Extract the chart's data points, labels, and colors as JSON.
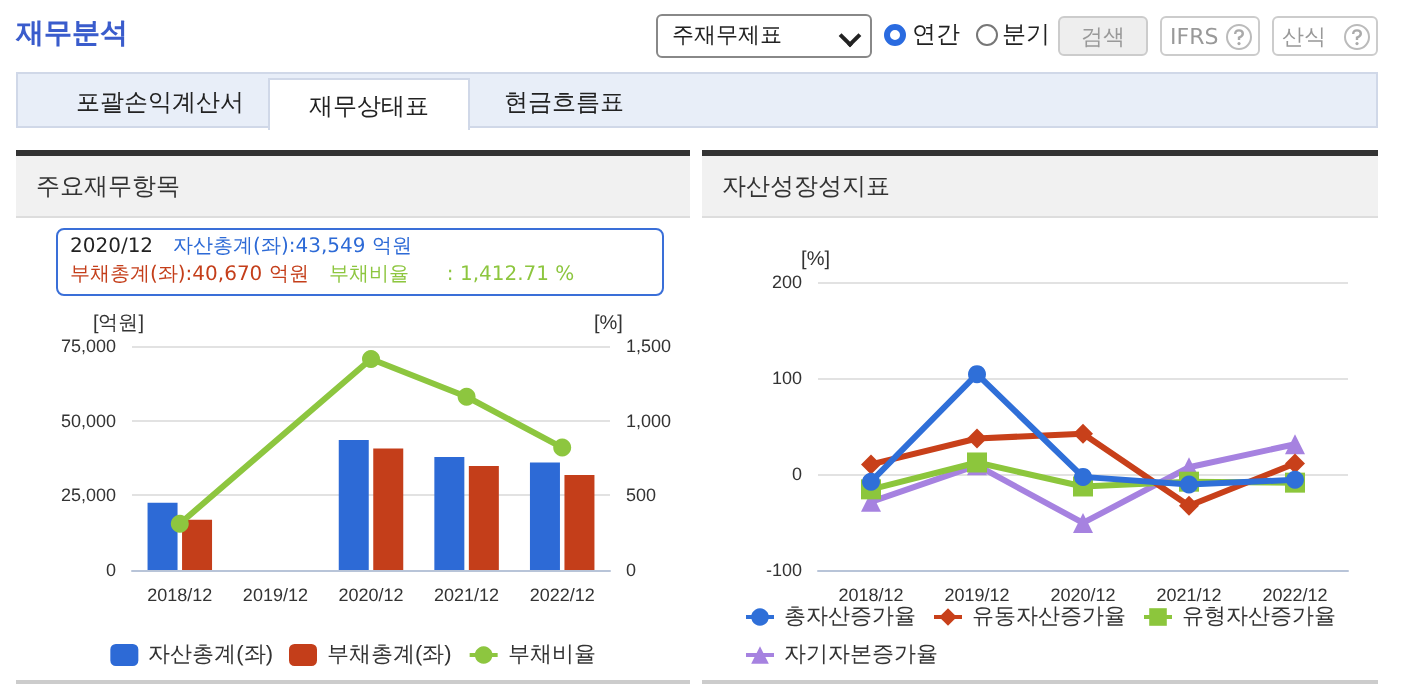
{
  "chart_data": [
    {
      "type": "other",
      "title": "재무분석",
      "annotations": [
        "주재무제표",
        "연간",
        "분기",
        "검색",
        "IFRS",
        "산식",
        "포괄손익계산서",
        "재무상태표",
        "현금흐름표"
      ]
    },
    {
      "type": "bar",
      "title": "주요재무항목",
      "ylabel": "[억원]",
      "y2label": "[%]",
      "categories": [
        "2018/12",
        "2019/12",
        "2020/12",
        "2021/12",
        "2022/12"
      ],
      "series": [
        {
          "name": "자산총계(좌)",
          "color": "#2d6ad6",
          "values": [
            22500,
            null,
            43549,
            37800,
            36000
          ]
        },
        {
          "name": "부채총계(좌)",
          "color": "#c43e1a",
          "values": [
            16800,
            null,
            40670,
            34800,
            31800
          ]
        },
        {
          "name": "부채비율",
          "type": "line",
          "axis": "y2",
          "marker": "circle",
          "color": "#8dc63f",
          "values": [
            310,
            null,
            1412.71,
            1160,
            820
          ]
        }
      ],
      "ylim": [
        0,
        75000
      ],
      "yticks": [
        0,
        {
          "value": 25000,
          "label": "25,000"
        },
        {
          "value": 50000,
          "label": "50,000"
        },
        {
          "value": 75000,
          "label": "75,000"
        }
      ],
      "y2lim": [
        0,
        1500
      ],
      "y2ticks": [
        0,
        500,
        {
          "value": 1000,
          "label": "1,000"
        },
        {
          "value": 1500,
          "label": "1,500"
        }
      ],
      "grid": "y",
      "legend": "bottom",
      "annotations": [
        "2020/12",
        "자산총계(좌):43,549 억원",
        "부채총계(좌):40,670 억원",
        "부채비율      : 1,412.71 %"
      ]
    },
    {
      "type": "line",
      "title": "자산성장성지표",
      "ylabel": "[%]",
      "categories": [
        "2018/12",
        "2019/12",
        "2020/12",
        "2021/12",
        "2022/12"
      ],
      "series": [
        {
          "name": "총자산증가율",
          "color": "#2f6fd8",
          "marker": "circle",
          "values": [
            -8,
            104,
            -3,
            -11,
            -6
          ]
        },
        {
          "name": "유동자산증가율",
          "color": "#c8401a",
          "marker": "diamond",
          "values": [
            10,
            37,
            42,
            -33,
            11
          ]
        },
        {
          "name": "유형자산증가율",
          "color": "#8cc63c",
          "marker": "square",
          "values": [
            -16,
            12,
            -13,
            -8,
            -9
          ]
        },
        {
          "name": "자기자본증가율",
          "color": "#a682e0",
          "marker": "triangle",
          "values": [
            -29,
            9,
            -51,
            7,
            31
          ]
        }
      ],
      "ylim": [
        -100,
        200
      ],
      "yticks": [
        -100,
        0,
        100,
        200
      ],
      "grid": "y",
      "legend": "bottom"
    }
  ]
}
